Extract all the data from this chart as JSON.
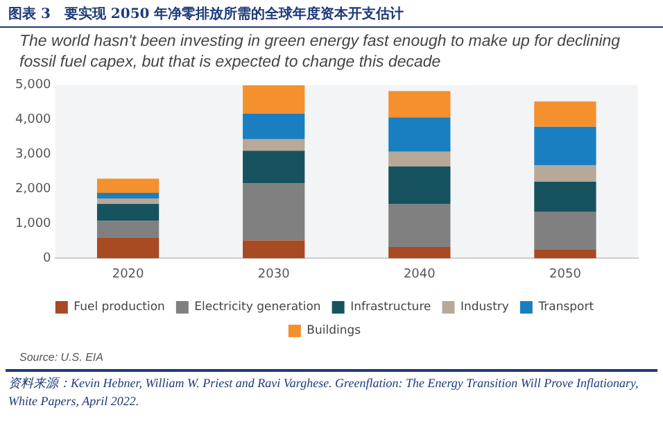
{
  "chart_data": {
    "type": "bar",
    "stacked": true,
    "title": "图表 3　要实现 2050 年净零排放所需的全球年度资本开支估计",
    "subtitle": "The world hasn't been investing in green energy fast enough to make up for declining fossil fuel capex, but that is expected to change this decade",
    "categories": [
      "2020",
      "2030",
      "2040",
      "2050"
    ],
    "series": [
      {
        "name": "Fuel production",
        "color": "#a84a22",
        "values": [
          590,
          520,
          330,
          250
        ]
      },
      {
        "name": "Electricity generation",
        "color": "#808080",
        "values": [
          490,
          1640,
          1230,
          1100
        ]
      },
      {
        "name": "Infrastructure",
        "color": "#17535f",
        "values": [
          490,
          950,
          1090,
          860
        ]
      },
      {
        "name": "Industry",
        "color": "#b8a898",
        "values": [
          160,
          330,
          430,
          470
        ]
      },
      {
        "name": "Transport",
        "color": "#1a7fc1",
        "values": [
          160,
          740,
          990,
          1120
        ]
      },
      {
        "name": "Buildings",
        "color": "#f5902e",
        "values": [
          410,
          820,
          760,
          730
        ]
      }
    ],
    "ylim": [
      0,
      5000
    ],
    "yticks": [
      0,
      {
        "value": 1000,
        "label": "1,000"
      },
      {
        "value": 2000,
        "label": "2,000"
      },
      {
        "value": 3000,
        "label": "3,000"
      },
      {
        "value": 4000,
        "label": "4,000"
      },
      {
        "value": 5000,
        "label": "5,000"
      }
    ],
    "grid": false,
    "legend": "bottom",
    "annotations": [
      "Source: U.S. EIA",
      "资料来源：Kevin Hebner, William W. Priest and Ravi Varghese. Greenflation: The Energy Transition Will Prove Inflationary, White Papers, April 2022."
    ]
  }
}
